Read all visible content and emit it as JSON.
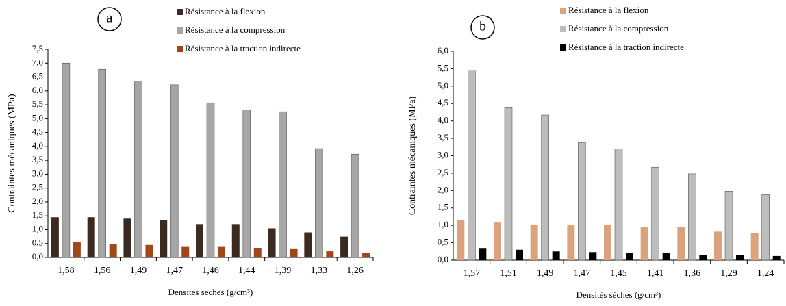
{
  "chart_data": [
    {
      "type": "bar",
      "label": "a",
      "xlabel": "Densites seches (g/cm³)",
      "ylabel": "Contraintes  mécaniques  (MPa)",
      "categories": [
        "1,58",
        "1,56",
        "1,49",
        "1,47",
        "1,46",
        "1,44",
        "1,39",
        "1,33",
        "1,26"
      ],
      "series": [
        {
          "name": "Résistance à la flexion",
          "color": "#3b2a1f",
          "values": [
            1.45,
            1.45,
            1.4,
            1.35,
            1.2,
            1.2,
            1.05,
            0.9,
            0.75
          ]
        },
        {
          "name": "Résistance à la compression",
          "color": "#a6a6a6",
          "values": [
            7.0,
            6.78,
            6.35,
            6.22,
            5.57,
            5.32,
            5.25,
            3.92,
            3.72
          ]
        },
        {
          "name": "Résistance à la traction indirecte",
          "color": "#a0471a",
          "values": [
            0.55,
            0.48,
            0.45,
            0.38,
            0.38,
            0.32,
            0.3,
            0.22,
            0.15
          ]
        }
      ],
      "ylim": [
        0,
        7.5
      ],
      "yticks": [
        {
          "value": 0,
          "label": "0,0"
        },
        {
          "value": 0.5,
          "label": "0,5"
        },
        {
          "value": 1,
          "label": "1,0"
        },
        {
          "value": 1.5,
          "label": "1,5"
        },
        {
          "value": 2,
          "label": "2,0"
        },
        {
          "value": 2.5,
          "label": "2,5"
        },
        {
          "value": 3,
          "label": "3,0"
        },
        {
          "value": 3.5,
          "label": "3,5"
        },
        {
          "value": 4,
          "label": "4,0"
        },
        {
          "value": 4.5,
          "label": "4,5"
        },
        {
          "value": 5,
          "label": "5,0"
        },
        {
          "value": 5.5,
          "label": "5,5"
        },
        {
          "value": 6,
          "label": "6,0"
        },
        {
          "value": 6.5,
          "label": "6,5"
        },
        {
          "value": 7,
          "label": "7,0"
        },
        {
          "value": 7.5,
          "label": "7,5"
        }
      ]
    },
    {
      "type": "bar",
      "label": "b",
      "xlabel": "Densités sèches (g/cm³)",
      "ylabel": "Contraintes  mécaniques  (MPa)",
      "categories": [
        "1,57",
        "1,51",
        "1,49",
        "1,47",
        "1,45",
        "1,41",
        "1,36",
        "1,29",
        "1,24"
      ],
      "series": [
        {
          "name": "Résistance à la flexion",
          "color": "#dca27c",
          "values": [
            1.15,
            1.08,
            1.02,
            1.02,
            1.02,
            0.95,
            0.95,
            0.82,
            0.77
          ]
        },
        {
          "name": "Résistance à la compression",
          "color": "#bdbdbd",
          "values": [
            5.45,
            4.38,
            4.17,
            3.38,
            3.2,
            2.67,
            2.48,
            1.98,
            1.88
          ]
        },
        {
          "name": "Résistance à la traction indirecte",
          "color": "#000000",
          "values": [
            0.33,
            0.3,
            0.25,
            0.23,
            0.2,
            0.2,
            0.15,
            0.15,
            0.12
          ]
        }
      ],
      "ylim": [
        0,
        6
      ],
      "yticks": [
        {
          "value": 0,
          "label": "0,0"
        },
        {
          "value": 0.5,
          "label": "0,5"
        },
        {
          "value": 1,
          "label": "1,0"
        },
        {
          "value": 1.5,
          "label": "1,5"
        },
        {
          "value": 2,
          "label": "2,0"
        },
        {
          "value": 2.5,
          "label": "2,5"
        },
        {
          "value": 3,
          "label": "3,0"
        },
        {
          "value": 3.5,
          "label": "3,5"
        },
        {
          "value": 4,
          "label": "4,0"
        },
        {
          "value": 4.5,
          "label": "4,5"
        },
        {
          "value": 5,
          "label": "5,0"
        },
        {
          "value": 5.5,
          "label": "5,5"
        },
        {
          "value": 6,
          "label": "6,0"
        }
      ]
    }
  ]
}
